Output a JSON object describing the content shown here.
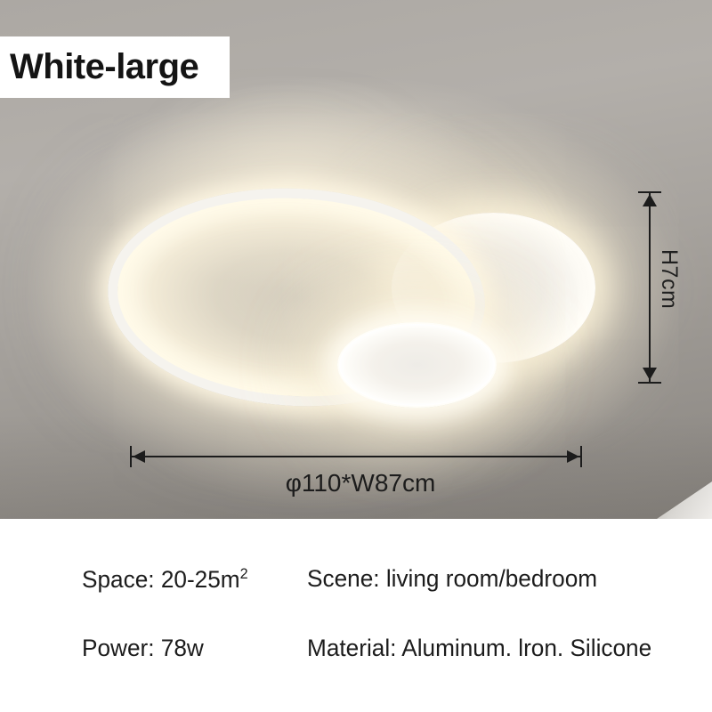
{
  "product": {
    "variant_label": "White-large",
    "dimensions": {
      "height": "H7cm",
      "width": "φ110*W87cm"
    },
    "specs": {
      "space_prefix": "Space: 20-25m",
      "space_sup": "2",
      "scene": "Scene: living room/bedroom",
      "power": "Power: 78w",
      "material": "Material: Aluminum. lron. Silicone"
    }
  },
  "colors": {
    "ceiling_gray_top": "#b3afaa",
    "ceiling_gray_bottom": "#8a8681",
    "glow_warm": "#f6e9c9",
    "lamp_white": "#fffdf7",
    "annotation_text": "#1c1c1c",
    "label_background": "#ffffff",
    "panel_background": "#ffffff"
  }
}
